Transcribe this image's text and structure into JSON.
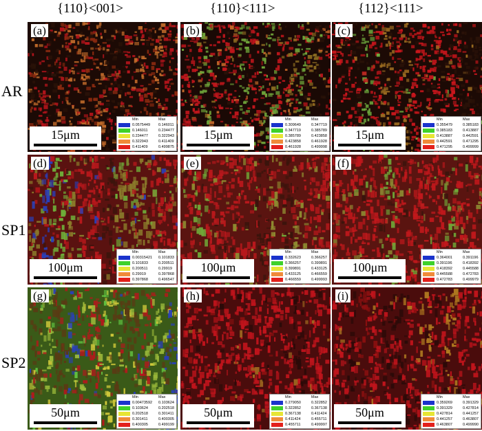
{
  "columns": [
    "{110}<001>",
    "{110}<111>",
    "{112}<111>"
  ],
  "rows": [
    {
      "label": "AR",
      "scale": "15μm"
    },
    {
      "label": "SP1",
      "scale": "100μm"
    },
    {
      "label": "SP2",
      "scale": "50μm"
    }
  ],
  "legend_header": {
    "min": "Min",
    "max": "Max"
  },
  "legend_colors": [
    "#1a33cc",
    "#3fd12a",
    "#e7e534",
    "#f08a3a",
    "#e3201c"
  ],
  "panels": [
    {
      "label": "(a)",
      "legend": [
        [
          "0.0575449",
          "0.146011"
        ],
        [
          "0.146011",
          "0.234477"
        ],
        [
          "0.234477",
          "0.322943"
        ],
        [
          "0.322943",
          "0.411409"
        ],
        [
          "0.411409",
          "0.499875"
        ]
      ]
    },
    {
      "label": "(b)",
      "legend": [
        [
          "0.309649",
          "0.347719"
        ],
        [
          "0.347719",
          "0.385789"
        ],
        [
          "0.385789",
          "0.423858"
        ],
        [
          "0.423858",
          "0.461928"
        ],
        [
          "0.461928",
          "0.499998"
        ]
      ]
    },
    {
      "label": "(c)",
      "legend": [
        [
          "0.355479",
          "0.385183"
        ],
        [
          "0.385183",
          "0.413887"
        ],
        [
          "0.413887",
          "0.442591"
        ],
        [
          "0.442591",
          "0.471295"
        ],
        [
          "0.471295",
          "0.499999"
        ]
      ]
    },
    {
      "label": "(d)",
      "legend": [
        [
          "0.00315421",
          "0.101833"
        ],
        [
          "0.101833",
          "0.200511"
        ],
        [
          "0.200511",
          "0.29919"
        ],
        [
          "0.29919",
          "0.397868"
        ],
        [
          "0.397868",
          "0.496547"
        ]
      ]
    },
    {
      "label": "(e)",
      "legend": [
        [
          "0.332623",
          "0.366257"
        ],
        [
          "0.366257",
          "0.399891"
        ],
        [
          "0.399891",
          "0.433125"
        ],
        [
          "0.433125",
          "0.466559"
        ],
        [
          "0.466559",
          "0.499993"
        ]
      ]
    },
    {
      "label": "(f)",
      "legend": [
        [
          "0.364001",
          "0.391196"
        ],
        [
          "0.391196",
          "0.418392"
        ],
        [
          "0.418392",
          "0.445588"
        ],
        [
          "0.445588",
          "0.472783"
        ],
        [
          "0.472783",
          "0.499979"
        ]
      ]
    },
    {
      "label": "(g)",
      "legend": [
        [
          "0.00473592",
          "0.103624"
        ],
        [
          "0.103624",
          "0.202518"
        ],
        [
          "0.202518",
          "0.301411"
        ],
        [
          "0.301411",
          "0.400305"
        ],
        [
          "0.400305",
          "0.499199"
        ]
      ]
    },
    {
      "label": "(h)",
      "legend": [
        [
          "0.279050",
          "0.322852"
        ],
        [
          "0.322852",
          "0.367138"
        ],
        [
          "0.367138",
          "0.411424"
        ],
        [
          "0.411424",
          "0.455711"
        ],
        [
          "0.455711",
          "0.499997"
        ]
      ]
    },
    {
      "label": "(i)",
      "legend": [
        [
          "0.359269",
          "0.391329"
        ],
        [
          "0.391329",
          "0.427814"
        ],
        [
          "0.427814",
          "0.441257"
        ],
        [
          "0.441257",
          "0.463807"
        ],
        [
          "0.463807",
          "0.499990"
        ]
      ]
    }
  ]
}
